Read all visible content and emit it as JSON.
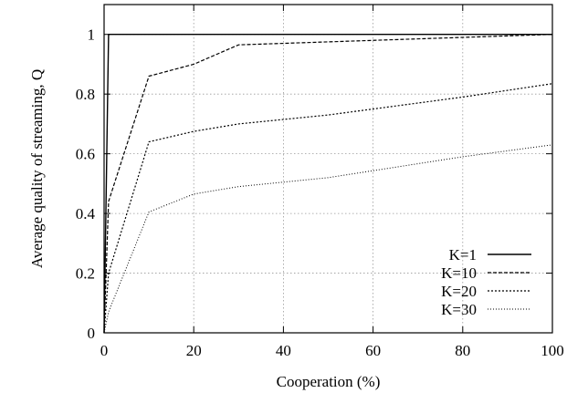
{
  "chart_data": {
    "type": "line",
    "xlabel": "Cooperation (%)",
    "ylabel": "Average quality of streaming, Q",
    "xlim": [
      0,
      100
    ],
    "ylim": [
      0,
      1.1
    ],
    "xticks": [
      0,
      20,
      40,
      60,
      80,
      100
    ],
    "yticks": [
      0,
      0.2,
      0.4,
      0.6,
      0.8,
      1
    ],
    "xtick_labels": [
      "0",
      "20",
      "40",
      "60",
      "80",
      "100"
    ],
    "ytick_labels": [
      "0",
      "0.2",
      "0.4",
      "0.6",
      "0.8",
      "1"
    ],
    "grid": true,
    "legend_position": "bottom-right",
    "series": [
      {
        "name": "K=1",
        "dash": "solid",
        "x": [
          0,
          1,
          5,
          10,
          20,
          30,
          50,
          80,
          100
        ],
        "y": [
          0,
          1.0,
          1.0,
          1.0,
          1.0,
          1.0,
          1.0,
          1.0,
          1.0
        ]
      },
      {
        "name": "K=10",
        "dash": "dashed",
        "x": [
          0,
          1,
          10,
          20,
          30,
          50,
          80,
          100
        ],
        "y": [
          0,
          0.44,
          0.86,
          0.9,
          0.965,
          0.975,
          0.99,
          1.0
        ]
      },
      {
        "name": "K=20",
        "dash": "dotted",
        "x": [
          0,
          1,
          10,
          20,
          30,
          50,
          80,
          100
        ],
        "y": [
          0,
          0.2,
          0.64,
          0.675,
          0.7,
          0.73,
          0.79,
          0.835
        ]
      },
      {
        "name": "K=30",
        "dash": "finedotted",
        "x": [
          0,
          1,
          10,
          20,
          30,
          50,
          80,
          100
        ],
        "y": [
          0,
          0.07,
          0.405,
          0.465,
          0.49,
          0.52,
          0.59,
          0.63
        ]
      }
    ]
  }
}
